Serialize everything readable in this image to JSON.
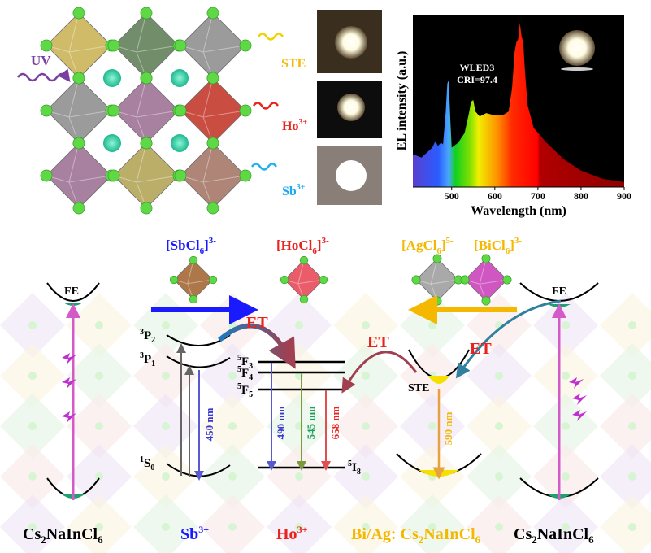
{
  "crystal": {
    "uv_label": "UV",
    "ste_label": "STE",
    "ho_label": "Ho",
    "ho_sup": "3+",
    "sb_label": "Sb",
    "sb_sup": "3+"
  },
  "colors": {
    "sb": "#1a1aff",
    "ho": "#e8231e",
    "ag": "#f5b800",
    "bi": "#c23bb0",
    "uv": "#7a3fa0",
    "ste": "#f5b800",
    "pink_arrow": "#d45bc7"
  },
  "chart_data": {
    "type": "area",
    "title": "",
    "annotation": [
      "WLED3",
      "CRI=97.4"
    ],
    "xlabel": "Wavelength (nm)",
    "ylabel": "EL intensity (a.u.)",
    "xlim": [
      410,
      900
    ],
    "ylim": [
      0,
      1.05
    ],
    "xticks": [
      "500",
      "600",
      "700",
      "800",
      "900"
    ],
    "x": [
      410,
      430,
      455,
      462,
      468,
      475,
      480,
      486,
      490,
      493,
      497,
      500,
      515,
      530,
      540,
      545,
      550,
      555,
      565,
      580,
      595,
      620,
      632,
      640,
      646,
      650,
      654,
      658,
      662,
      666,
      670,
      676,
      690,
      720,
      760,
      800,
      850,
      900
    ],
    "y": [
      0.2,
      0.18,
      0.24,
      0.28,
      0.25,
      0.27,
      0.26,
      0.45,
      0.63,
      0.65,
      0.4,
      0.24,
      0.27,
      0.33,
      0.45,
      0.52,
      0.53,
      0.46,
      0.43,
      0.45,
      0.44,
      0.44,
      0.46,
      0.6,
      0.82,
      0.88,
      0.9,
      1.0,
      0.92,
      0.88,
      0.7,
      0.5,
      0.36,
      0.27,
      0.17,
      0.1,
      0.05,
      0.03
    ]
  },
  "diagram": {
    "sbcl6": "[SbCl",
    "sbcl6_sub": "6",
    "sbcl6_sup": "3-",
    "hocl6": "[HoCl",
    "hocl6_sub": "6",
    "hocl6_sup": "3-",
    "agcl6": "[AgCl",
    "agcl6_sub": "6",
    "agcl6_sup": "5-",
    "bicl6": "[BiCl",
    "bicl6_sub": "6",
    "bicl6_sup": "3-",
    "fe_left": "FE",
    "fe_right": "FE",
    "et1": "ET",
    "et2": "ET",
    "et3": "ET",
    "sb_levels": {
      "p2": "P",
      "p2_sup": "3",
      "p2_sub": "2",
      "p1": "P",
      "p1_sup": "3",
      "p1_sub": "1",
      "s0": "S",
      "s0_sup": "1",
      "s0_sub": "0"
    },
    "ho_levels": {
      "f3": "F",
      "f3_sup": "5",
      "f3_sub": "3",
      "f4": "F",
      "f4_sup": "5",
      "f4_sub": "4",
      "f5": "F",
      "f5_sup": "5",
      "f5_sub": "5",
      "i8": "I",
      "i8_sup": "5",
      "i8_sub": "8"
    },
    "ste": "STE",
    "nm450": "450 nm",
    "nm490": "490 nm",
    "nm545": "545 nm",
    "nm658": "658 nm",
    "nm590": "590 nm",
    "bottom": {
      "host_left": "Cs",
      "host_left_sub1": "2",
      "host_left_mid": "NaInCl",
      "host_left_sub2": "6",
      "sb": "Sb",
      "sb_sup": "3+",
      "ho": "Ho",
      "ho_sup": "3+",
      "biag": "Bi/Ag: Cs",
      "biag_sub1": "2",
      "biag_mid": "NaInCl",
      "biag_sub2": "6",
      "host_right": "Cs",
      "host_right_sub1": "2",
      "host_right_mid": "NaInCl",
      "host_right_sub2": "6"
    }
  }
}
